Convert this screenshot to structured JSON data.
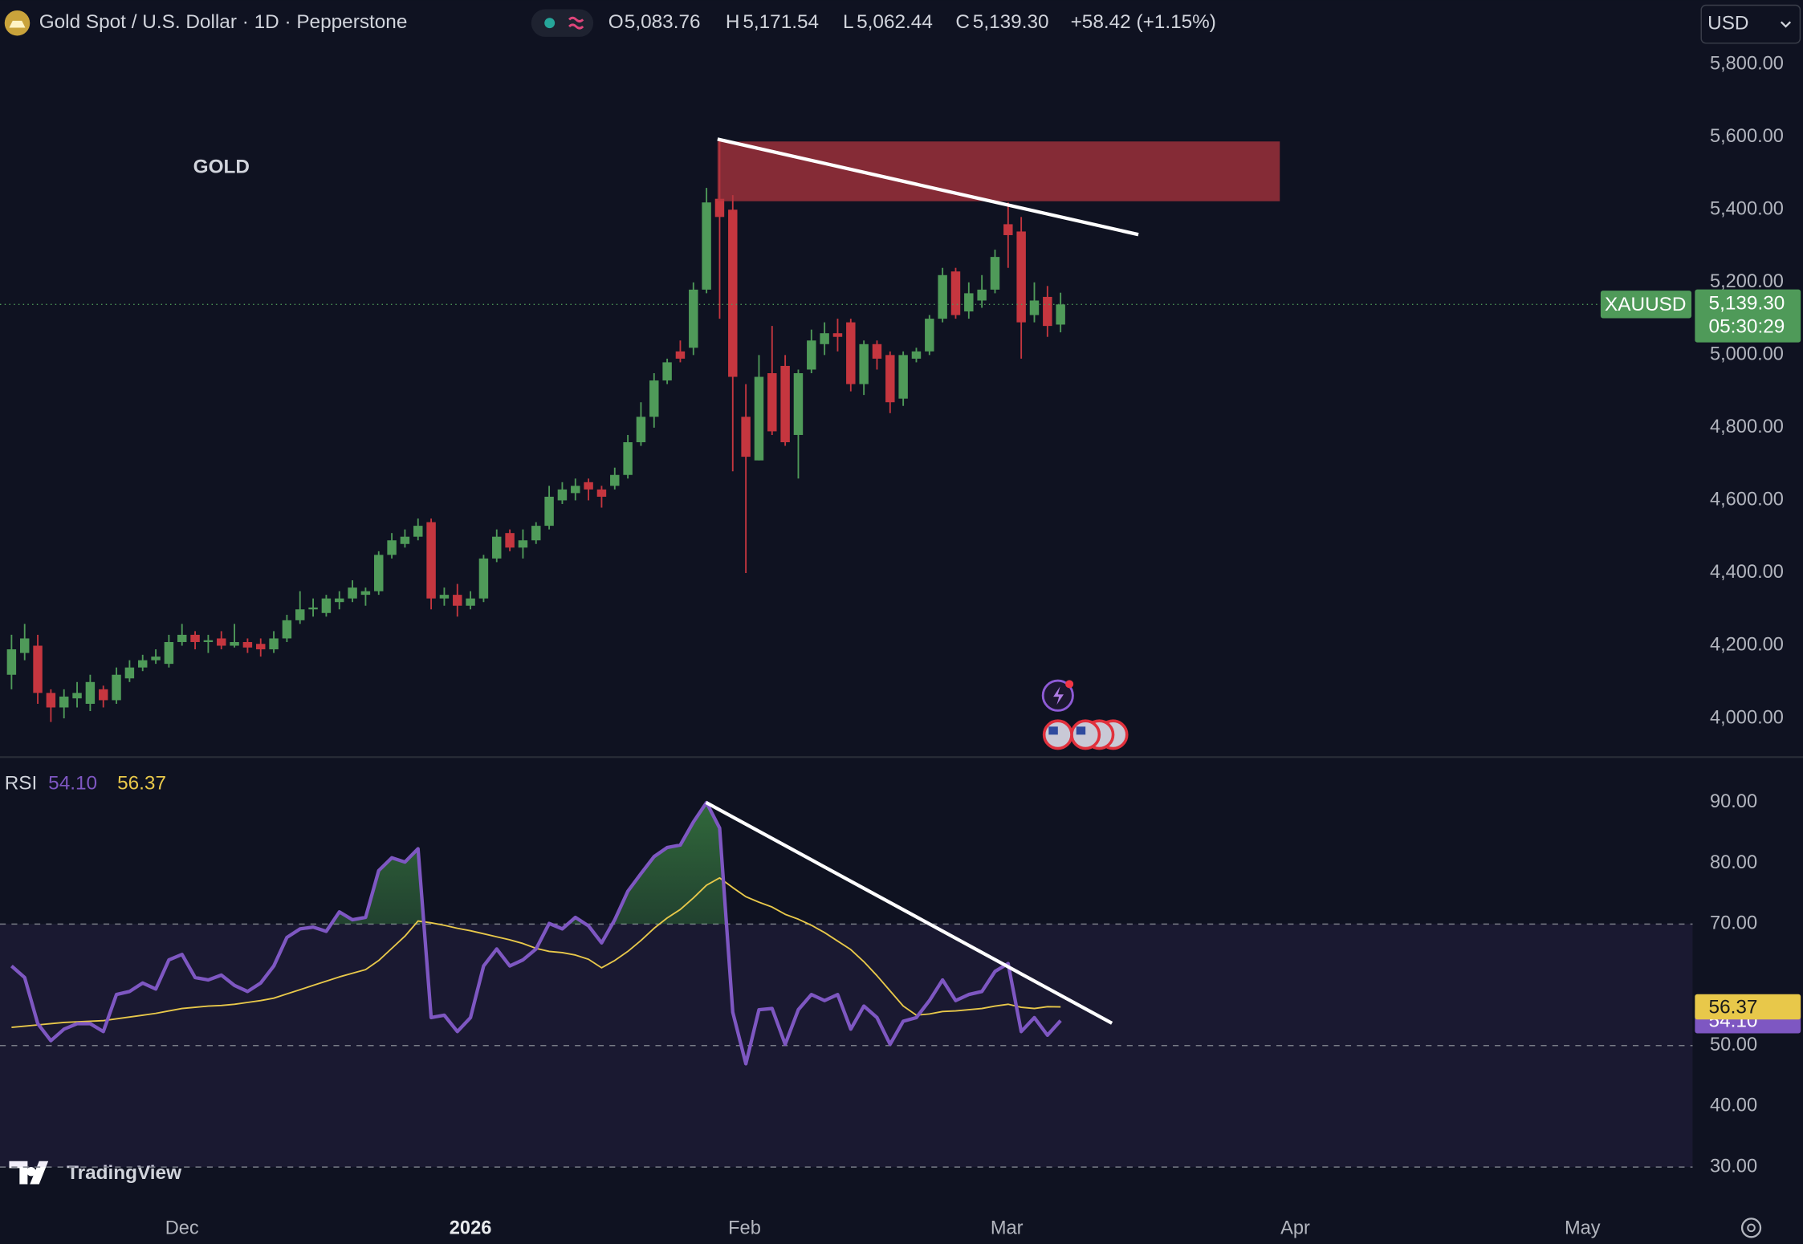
{
  "header": {
    "title": "Gold Spot / U.S. Dollar · 1D · Pepperstone",
    "open_label": "O",
    "open": "5,083.76",
    "high_label": "H",
    "high": "5,171.54",
    "low_label": "L",
    "low": "5,062.44",
    "close_label": "C",
    "close": "5,139.30",
    "change": "+58.42 (+1.15%)",
    "currency": "USD"
  },
  "annotation": "GOLD",
  "watermark": "TradingView",
  "chart_data": [
    {
      "type": "candlestick",
      "symbol": "XAUUSD",
      "last_label": "5,139.30",
      "countdown": "05:30:29",
      "up_color": "#4f9a59",
      "down_color": "#c5363f",
      "grid": false,
      "open": [
        4120,
        4180,
        4200,
        4070,
        4030,
        4055,
        4040,
        4080,
        4050,
        4110,
        4140,
        4160,
        4150,
        4210,
        4230,
        4210,
        4220,
        4200,
        4210,
        4205,
        4190,
        4220,
        4270,
        4300,
        4290,
        4320,
        4330,
        4340,
        4350,
        4450,
        4480,
        4500,
        4540,
        4330,
        4340,
        4310,
        4330,
        4440,
        4510,
        4470,
        4490,
        4530,
        4600,
        4620,
        4650,
        4630,
        4640,
        4670,
        4760,
        4830,
        4930,
        5010,
        5020,
        5180,
        5430,
        5400,
        4830,
        4710,
        4950,
        4970,
        4780,
        4960,
        5030,
        5060,
        5090,
        4920,
        5030,
        5000,
        4880,
        4990,
        5010,
        5100,
        5230,
        5120,
        5150,
        5180,
        5360,
        5340,
        5110,
        5160,
        5083.76
      ],
      "high": [
        4230,
        4260,
        4230,
        4080,
        4080,
        4100,
        4120,
        4090,
        4140,
        4160,
        4175,
        4190,
        4230,
        4260,
        4240,
        4230,
        4240,
        4260,
        4220,
        4220,
        4240,
        4285,
        4350,
        4330,
        4340,
        4350,
        4380,
        4360,
        4460,
        4510,
        4520,
        4550,
        4550,
        4360,
        4370,
        4350,
        4450,
        4520,
        4520,
        4520,
        4540,
        4640,
        4650,
        4660,
        4660,
        4640,
        4690,
        4780,
        4870,
        4950,
        4990,
        5040,
        5200,
        5460,
        5590,
        5440,
        4920,
        5000,
        5080,
        5000,
        4960,
        5070,
        5090,
        5100,
        5100,
        5040,
        5040,
        5010,
        5010,
        5020,
        5110,
        5240,
        5240,
        5200,
        5220,
        5290,
        5420,
        5380,
        5200,
        5190,
        5171.54
      ],
      "low": [
        4080,
        4160,
        4040,
        3990,
        4000,
        4030,
        4020,
        4030,
        4040,
        4100,
        4130,
        4150,
        4140,
        4200,
        4190,
        4180,
        4190,
        4195,
        4180,
        4170,
        4180,
        4210,
        4260,
        4280,
        4280,
        4300,
        4320,
        4310,
        4340,
        4440,
        4470,
        4490,
        4300,
        4310,
        4280,
        4300,
        4320,
        4430,
        4460,
        4440,
        4480,
        4520,
        4590,
        4600,
        4600,
        4580,
        4630,
        4660,
        4750,
        4800,
        4920,
        4980,
        5000,
        5170,
        5100,
        4680,
        4400,
        4710,
        4780,
        4750,
        4660,
        4950,
        5000,
        5010,
        4900,
        4890,
        4960,
        4840,
        4860,
        4980,
        5000,
        5090,
        5100,
        5100,
        5130,
        5170,
        5240,
        4990,
        5090,
        5050,
        5062.44
      ],
      "close": [
        4190,
        4220,
        4070,
        4030,
        4060,
        4070,
        4100,
        4050,
        4120,
        4140,
        4160,
        4170,
        4210,
        4230,
        4210,
        4215,
        4200,
        4210,
        4195,
        4190,
        4220,
        4270,
        4300,
        4305,
        4330,
        4330,
        4360,
        4350,
        4450,
        4490,
        4500,
        4530,
        4330,
        4340,
        4310,
        4330,
        4440,
        4500,
        4470,
        4490,
        4530,
        4610,
        4630,
        4640,
        4630,
        4610,
        4670,
        4760,
        4830,
        4930,
        4980,
        4990,
        5180,
        5420,
        5380,
        4940,
        4720,
        4940,
        4790,
        4760,
        4950,
        5040,
        5060,
        5050,
        4920,
        5030,
        4990,
        4870,
        5000,
        5010,
        5100,
        5220,
        5110,
        5170,
        5180,
        5270,
        5330,
        5090,
        5150,
        5080,
        5139.3
      ],
      "xlim": [
        -0.88,
        128.2
      ],
      "xticks": [
        {
          "value": 13.0,
          "label": "Dec"
        },
        {
          "value": 35.0,
          "label": "2026"
        },
        {
          "value": 55.9,
          "label": "Feb"
        },
        {
          "value": 75.9,
          "label": "Mar"
        },
        {
          "value": 97.9,
          "label": "Apr"
        },
        {
          "value": 119.8,
          "label": "May"
        }
      ],
      "ylim": [
        3895,
        5977
      ],
      "yticks": [
        {
          "value": 4000,
          "label": "4,000.00"
        },
        {
          "value": 4200,
          "label": "4,200.00"
        },
        {
          "value": 4400,
          "label": "4,400.00"
        },
        {
          "value": 4600,
          "label": "4,600.00"
        },
        {
          "value": 4800,
          "label": "4,800.00"
        },
        {
          "value": 5000,
          "label": "5,000.00"
        },
        {
          "value": 5200,
          "label": "5,200.00"
        },
        {
          "value": 5400,
          "label": "5,400.00"
        },
        {
          "value": 5600,
          "label": "5,600.00"
        },
        {
          "value": 5800,
          "label": "5,800.00"
        }
      ]
    },
    {
      "type": "line",
      "title": "RSI",
      "series": [
        {
          "color": "#7e57c2",
          "last_label": "54.10",
          "values": [
            63.1,
            61.2,
            53.6,
            50.8,
            52.7,
            53.6,
            53.6,
            52.3,
            58.4,
            58.9,
            60.3,
            59.3,
            64.1,
            65.0,
            61.2,
            60.8,
            61.6,
            59.9,
            58.9,
            60.3,
            63.1,
            67.8,
            69.2,
            69.5,
            68.8,
            72.0,
            70.7,
            71.1,
            78.8,
            80.9,
            80.2,
            82.4,
            54.6,
            55.0,
            52.3,
            54.6,
            63.1,
            65.9,
            63.1,
            64.1,
            65.9,
            70.1,
            69.2,
            71.1,
            69.7,
            66.9,
            70.7,
            75.4,
            78.3,
            81.1,
            82.6,
            83.0,
            86.8,
            90.0,
            85.8,
            55.5,
            47.0,
            55.9,
            56.1,
            50.2,
            55.9,
            58.4,
            57.4,
            58.4,
            52.7,
            56.5,
            54.6,
            50.2,
            54.0,
            54.6,
            57.4,
            60.8,
            57.4,
            58.4,
            58.9,
            62.2,
            63.5,
            52.3,
            54.6,
            51.7,
            54.1
          ]
        },
        {
          "color": "#e8c84a",
          "last_label": "56.37",
          "values": [
            53.0,
            53.2,
            53.4,
            53.6,
            53.8,
            53.9,
            54.0,
            54.1,
            54.4,
            54.7,
            55.0,
            55.3,
            55.7,
            56.1,
            56.3,
            56.5,
            56.6,
            56.8,
            57.1,
            57.4,
            57.8,
            58.5,
            59.2,
            59.9,
            60.6,
            61.3,
            61.9,
            62.5,
            64.0,
            66.0,
            68.0,
            70.5,
            70.2,
            69.8,
            69.3,
            68.9,
            68.4,
            67.9,
            67.4,
            66.8,
            66.0,
            65.5,
            65.3,
            64.9,
            64.2,
            62.8,
            64.0,
            65.5,
            67.3,
            69.3,
            71.0,
            72.4,
            74.3,
            76.4,
            77.6,
            76.0,
            74.5,
            73.6,
            72.8,
            71.6,
            70.8,
            69.8,
            68.6,
            67.2,
            65.8,
            63.8,
            61.5,
            59.0,
            56.5,
            55.0,
            55.2,
            55.6,
            55.7,
            55.9,
            56.1,
            56.5,
            56.8,
            56.3,
            56.1,
            56.4,
            56.37
          ]
        }
      ],
      "band_lines": [
        70,
        50,
        30
      ],
      "ylim": [
        23.4,
        97.2
      ],
      "yticks": [
        {
          "value": 30,
          "label": "30.00"
        },
        {
          "value": 40,
          "label": "40.00"
        },
        {
          "value": 50,
          "label": "50.00"
        },
        {
          "value": 70,
          "label": "70.00"
        },
        {
          "value": 80,
          "label": "80.00"
        },
        {
          "value": 90,
          "label": "90.00"
        }
      ]
    }
  ]
}
